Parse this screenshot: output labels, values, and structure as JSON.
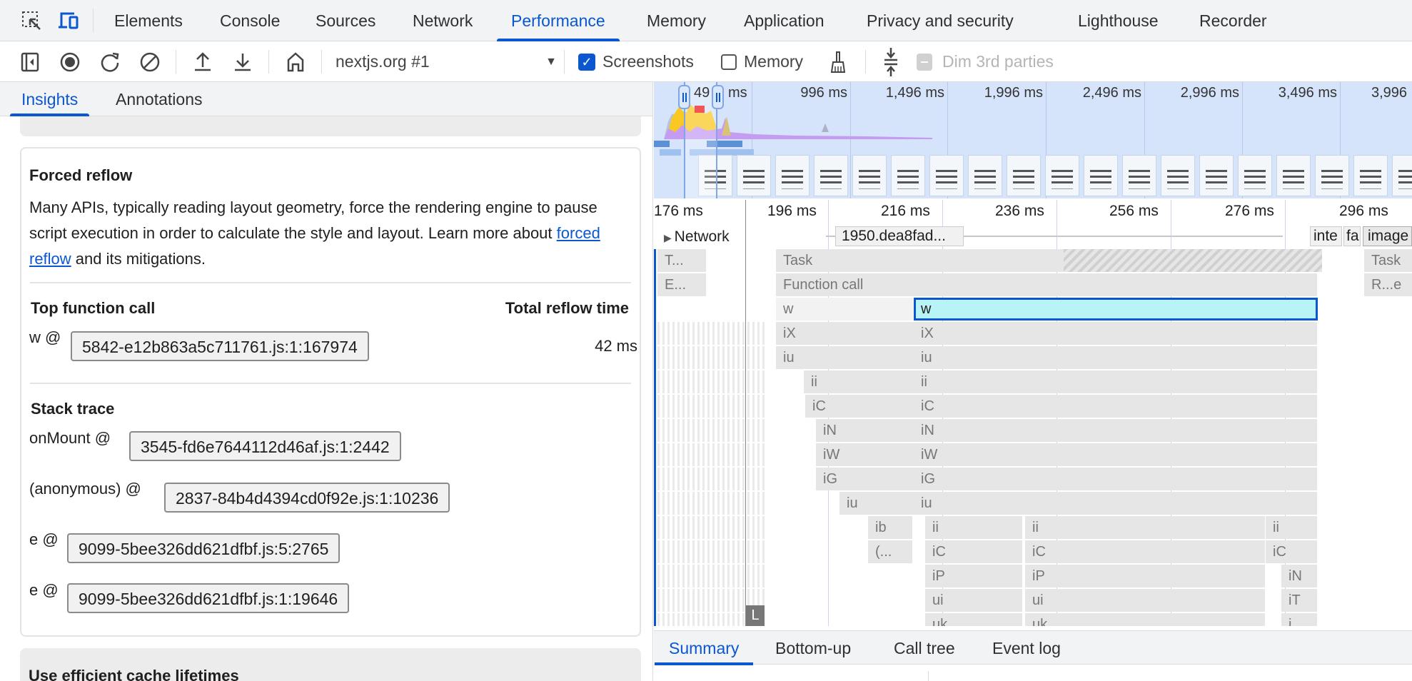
{
  "tabs": [
    "Elements",
    "Console",
    "Sources",
    "Network",
    "Performance",
    "Memory",
    "Application",
    "Privacy and security",
    "Lighthouse",
    "Recorder"
  ],
  "active_tab": "Performance",
  "toolbar": {
    "recording_select": "nextjs.org #1",
    "screenshots_label": "Screenshots",
    "screenshots_checked": true,
    "memory_label": "Memory",
    "memory_checked": false,
    "dim_label": "Dim 3rd parties"
  },
  "sidebar": {
    "tabs": [
      "Insights",
      "Annotations"
    ],
    "active": "Insights"
  },
  "insight": {
    "title": "Forced reflow",
    "desc_before": "Many APIs, typically reading layout geometry, force the rendering engine to pause script execution in order to calculate the style and layout. Learn more about ",
    "link": "forced reflow",
    "desc_after": " and its mitigations.",
    "top_header": "Top function call",
    "time_header": "Total reflow time",
    "top_fn": "w @",
    "top_loc": "5842-e12b863a5c711761.js:1:167974",
    "total_time": "42 ms",
    "stack_header": "Stack trace",
    "stack": [
      {
        "fn": "onMount @",
        "loc": "3545-fd6e7644112d46af.js:1:2442"
      },
      {
        "fn": "(anonymous) @",
        "loc": "2837-84b4d4394cd0f92e.js:1:10236"
      },
      {
        "fn": "e @",
        "loc": "9099-5bee326dd621dfbf.js:5:2765"
      },
      {
        "fn": "e @",
        "loc": "9099-5bee326dd621dfbf.js:1:19646"
      }
    ],
    "next_title": "Use efficient cache lifetimes"
  },
  "overview": {
    "labels": [
      "49",
      "ms",
      "996 ms",
      "1,496 ms",
      "1,996 ms",
      "2,496 ms",
      "2,996 ms",
      "3,496 ms",
      "3,996"
    ]
  },
  "ruler": [
    "176 ms",
    "196 ms",
    "216 ms",
    "236 ms",
    "256 ms",
    "276 ms",
    "296 ms"
  ],
  "network": {
    "label": "Network",
    "requests": [
      "1950.dea8fad...",
      "inte",
      "fa",
      "image"
    ]
  },
  "flame": {
    "r0": [
      "T...",
      "Task",
      "Task"
    ],
    "r1": [
      "E...",
      "Function call",
      "R...e"
    ],
    "r2": [
      "w",
      "w"
    ],
    "r3": [
      "iX",
      "iX"
    ],
    "r4": [
      "iu",
      "iu"
    ],
    "r5": [
      "ii",
      "ii"
    ],
    "r6": [
      "iC",
      "iC"
    ],
    "r7": [
      "iN",
      "iN"
    ],
    "r8": [
      "iW",
      "iW"
    ],
    "r9": [
      "iG",
      "iG"
    ],
    "r10": [
      "iu",
      "iu"
    ],
    "r11": [
      "ib",
      "ii",
      "ii",
      "ii"
    ],
    "r12": [
      "(...",
      "iC",
      "iC",
      "iC"
    ],
    "r13": [
      "iP",
      "iP",
      "iN"
    ],
    "r14": [
      "ui",
      "ui",
      "iT"
    ],
    "r15": [
      "uk",
      "uk",
      "i"
    ],
    "marker": "L",
    "selected_color": "#b8f3f5"
  },
  "bottom_tabs": [
    "Summary",
    "Bottom-up",
    "Call tree",
    "Event log"
  ],
  "accent": "#0b57d0"
}
